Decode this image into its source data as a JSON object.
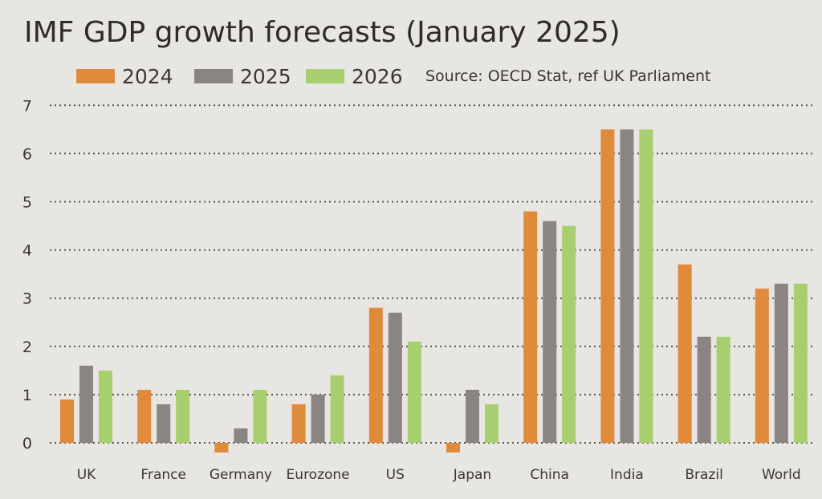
{
  "colors": {
    "2024": "#e08a3c",
    "2025": "#8a8482",
    "2026": "#a8cf6f",
    "background": "#e8e6e2",
    "grid": "#555555"
  },
  "chart_data": {
    "type": "bar",
    "title": "IMF GDP growth forecasts (January 2025)",
    "source": "Source: OECD Stat, ref UK Parliament",
    "categories": [
      "UK",
      "France",
      "Germany",
      "Eurozone",
      "US",
      "Japan",
      "China",
      "India",
      "Brazil",
      "World"
    ],
    "series": [
      {
        "name": "2024",
        "values": [
          0.9,
          1.1,
          -0.2,
          0.8,
          2.8,
          -0.2,
          4.8,
          6.5,
          3.7,
          3.2
        ]
      },
      {
        "name": "2025",
        "values": [
          1.6,
          0.8,
          0.3,
          1.0,
          2.7,
          1.1,
          4.6,
          6.5,
          2.2,
          3.3
        ]
      },
      {
        "name": "2026",
        "values": [
          1.5,
          1.1,
          1.1,
          1.4,
          2.1,
          0.8,
          4.5,
          6.5,
          2.2,
          3.3
        ]
      }
    ],
    "yticks": [
      "0",
      "1",
      "2",
      "3",
      "4",
      "5",
      "6",
      "7"
    ],
    "ylim": [
      -0.3,
      7
    ],
    "grid": true,
    "legend": "top"
  }
}
